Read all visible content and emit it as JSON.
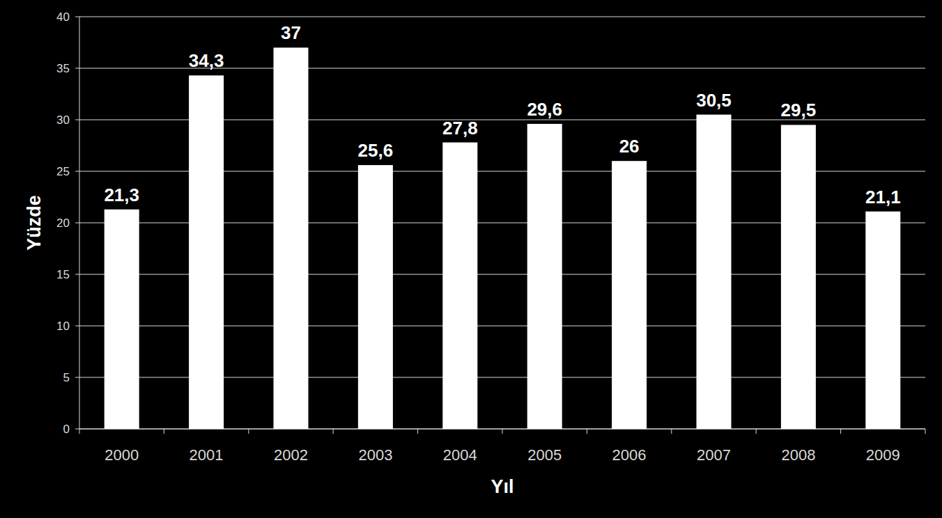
{
  "chart_data": {
    "type": "bar",
    "x_label": "Yıl",
    "y_label": "Yüzde",
    "categories": [
      "2000",
      "2001",
      "2002",
      "2003",
      "2004",
      "2005",
      "2006",
      "2007",
      "2008",
      "2009"
    ],
    "values": [
      21.3,
      34.3,
      37,
      25.6,
      27.8,
      29.6,
      26,
      30.5,
      29.5,
      21.1
    ],
    "value_labels": [
      "21,3",
      "34,3",
      "37",
      "25,6",
      "27,8",
      "29,6",
      "26",
      "30,5",
      "29,5",
      "21,1"
    ],
    "color": "#ffffff",
    "ylim": [
      0,
      40
    ],
    "yticks": [
      0,
      5,
      10,
      15,
      20,
      25,
      30,
      35,
      40
    ],
    "grid": true,
    "data_labels": true
  }
}
